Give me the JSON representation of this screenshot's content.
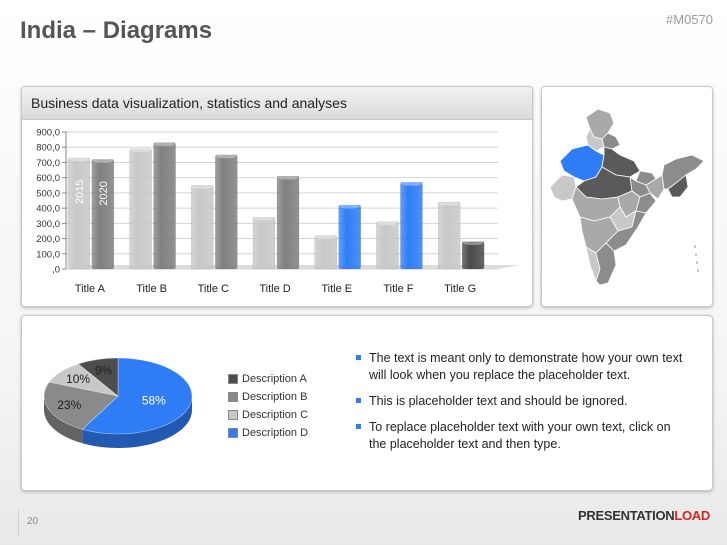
{
  "slide": {
    "title": "India – Diagrams",
    "code": "#M0570",
    "page_number": "20"
  },
  "brand": {
    "part1": "PRESENTATION",
    "part2": "LOAD",
    "accent_color": "#d5241c"
  },
  "bar_panel": {
    "header": "Business data visualization, statistics and analyses"
  },
  "map_panel": {
    "highlight_color": "#2f7df6",
    "region_colors": [
      "#5a5a5a",
      "#8c8c8c",
      "#a9a9a9",
      "#c8c8c8",
      "#2f7df6"
    ]
  },
  "bullets": [
    "The text is meant only to demonstrate how your own text will look when you replace the placeholder text.",
    "This is placeholder text and should be ignored.",
    "To replace placeholder text with your own text, click on the placeholder text and then type."
  ],
  "chart_data": [
    {
      "type": "bar",
      "categories": [
        "Title A",
        "Title B",
        "Title C",
        "Title D",
        "Title E",
        "Title F",
        "Title G"
      ],
      "series": [
        {
          "name": "2015",
          "values": [
            730,
            790,
            550,
            340,
            220,
            310,
            440
          ]
        },
        {
          "name": "2020",
          "values": [
            720,
            830,
            750,
            610,
            420,
            570,
            180
          ]
        }
      ],
      "colors": {
        "series1": "#c8c8c8",
        "series2": "#808080",
        "highlight": "#2f7df6",
        "last": "#4a4a4a"
      },
      "highlight_indices": [
        4,
        5
      ],
      "yticks": [
        ",0",
        "100,0",
        "200,0",
        "300,0",
        "400,0",
        "500,0",
        "600,0",
        "700,0",
        "800,0",
        "900,0"
      ],
      "ylim": [
        0,
        900
      ],
      "grid": true,
      "title": "",
      "xlabel": "",
      "ylabel": ""
    },
    {
      "type": "pie",
      "labels": [
        "Description A",
        "Description B",
        "Description C",
        "Description D"
      ],
      "values": [
        9,
        23,
        10,
        58
      ],
      "value_labels": [
        "9%",
        "23%",
        "10%",
        "58%"
      ],
      "colors": [
        "#4d4d4d",
        "#8a8a8a",
        "#c8c8c8",
        "#2f7df6"
      ],
      "legend_position": "right"
    }
  ]
}
